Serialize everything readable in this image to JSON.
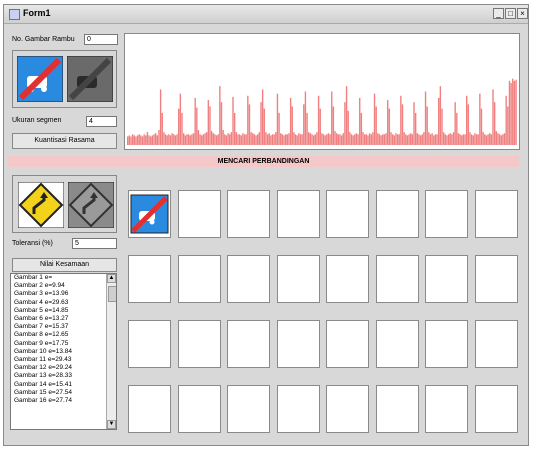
{
  "window": {
    "title": "Form1",
    "buttons": [
      "_",
      "□",
      "×"
    ]
  },
  "left": {
    "no_gambar_label": "No. Gambar Rambu",
    "no_gambar_value": "0",
    "ukuran_label": "Ukuran segmen",
    "ukuran_value": "4",
    "kuantisasi_button": "Kuantisasi Rasama",
    "toleransi_label": "Toleransi (%)",
    "toleransi_value": "5",
    "nilai_button": "Nilai Kesamaan",
    "list": [
      "Gambar 1   e=",
      "Gambar 2   e=9.94",
      "Gambar 3   e=13.96",
      "Gambar 4   e=29.63",
      "Gambar 5   e=14.85",
      "Gambar 6   e=13.27",
      "Gambar 7   e=15.37",
      "Gambar 8   e=12.65",
      "Gambar 9   e=17.75",
      "Gambar 10  e=13.84",
      "Gambar 11  e=29.43",
      "Gambar 12  e=29.24",
      "Gambar 13  e=28.33",
      "Gambar 14  e=15.41",
      "Gambar 15  e=27.54",
      "Gambar 16  e=27.74"
    ]
  },
  "banner": "MENCARI PERBANDINGAN",
  "chart_data": {
    "type": "bar",
    "color": "#f08080",
    "values": [
      8,
      9,
      8,
      10,
      9,
      8,
      9,
      10,
      9,
      8,
      10,
      9,
      12,
      9,
      8,
      9,
      10,
      11,
      9,
      14,
      52,
      30,
      12,
      10,
      9,
      10,
      9,
      11,
      10,
      9,
      10,
      34,
      48,
      30,
      11,
      9,
      10,
      10,
      9,
      10,
      11,
      44,
      35,
      14,
      10,
      9,
      10,
      11,
      12,
      42,
      36,
      13,
      11,
      10,
      9,
      10,
      55,
      40,
      14,
      10,
      9,
      11,
      10,
      12,
      45,
      30,
      12,
      10,
      10,
      9,
      11,
      10,
      10,
      46,
      38,
      12,
      11,
      10,
      9,
      10,
      12,
      40,
      52,
      34,
      12,
      10,
      11,
      9,
      10,
      10,
      12,
      48,
      30,
      11,
      10,
      9,
      10,
      10,
      11,
      44,
      36,
      12,
      10,
      9,
      11,
      10,
      10,
      38,
      50,
      30,
      12,
      11,
      10,
      9,
      10,
      12,
      46,
      34,
      11,
      10,
      9,
      10,
      11,
      10,
      50,
      36,
      13,
      11,
      10,
      10,
      9,
      11,
      40,
      55,
      32,
      12,
      10,
      9,
      10,
      11,
      10,
      44,
      30,
      12,
      10,
      10,
      9,
      11,
      10,
      12,
      48,
      36,
      11,
      10,
      9,
      10,
      10,
      11,
      42,
      34,
      12,
      10,
      9,
      11,
      10,
      10,
      46,
      38,
      12,
      10,
      9,
      10,
      11,
      10,
      40,
      30,
      11,
      10,
      9,
      10,
      12,
      50,
      36,
      12,
      10,
      11,
      9,
      10,
      10,
      44,
      55,
      34,
      12,
      10,
      9,
      10,
      11,
      10,
      12,
      40,
      30,
      11,
      10,
      9,
      10,
      10,
      46,
      38,
      12,
      10,
      9,
      11,
      10,
      10,
      48,
      34,
      12,
      10,
      9,
      10,
      11,
      10,
      52,
      40,
      13,
      11,
      10,
      9,
      10,
      11,
      46,
      36,
      60,
      58,
      62,
      60,
      61
    ],
    "ylim": [
      0,
      100
    ]
  },
  "grid": {
    "rows": 4,
    "cols": 8,
    "filled": [
      0
    ]
  }
}
